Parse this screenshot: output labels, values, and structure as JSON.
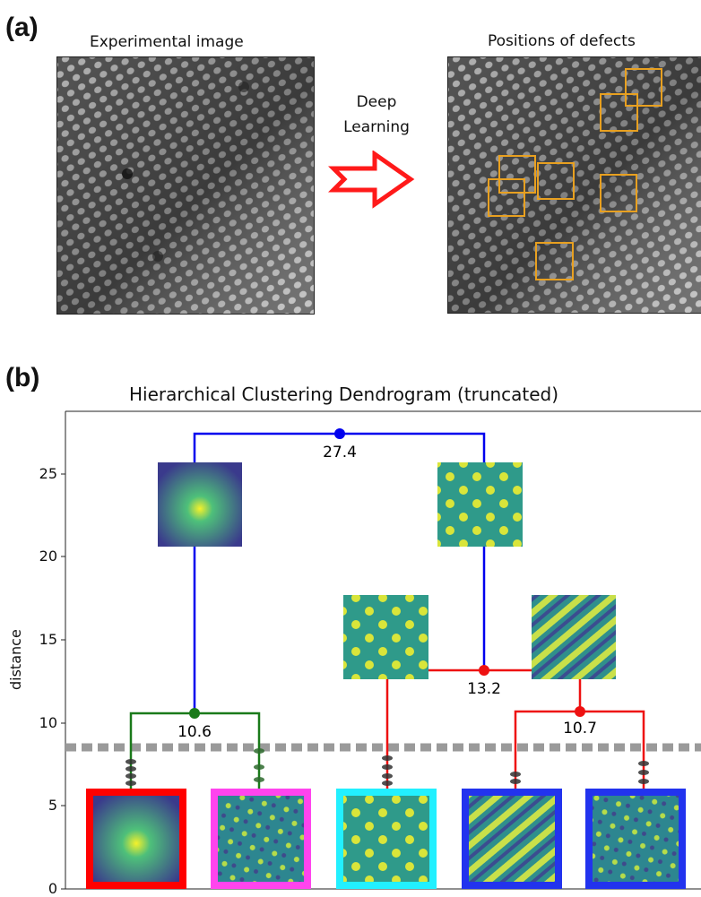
{
  "panel_a": {
    "label": "(a)",
    "left_caption": "Experimental image",
    "right_caption": "Positions of defects",
    "arrow_text_1": "Deep",
    "arrow_text_2": "Learning",
    "colors": {
      "arrow": "#ff1a1a",
      "defect_box": "#e8a020"
    }
  },
  "panel_b": {
    "label": "(b)",
    "title": "Hierarchical Clustering Dendrogram (truncated)",
    "ylabel": "distance",
    "yticks": [
      "0",
      "5",
      "10",
      "15",
      "20",
      "25"
    ],
    "merge_labels": [
      "27.4",
      "13.2",
      "10.6",
      "10.7"
    ],
    "colors": {
      "top_link": "#0000ee",
      "green_link": "#1a7a1a",
      "red_link": "#ee1111",
      "cutoff": "#9a9a9a",
      "leaf_frames": [
        "#ff0000",
        "#ff44ee",
        "#22f0ff",
        "#2233ee",
        "#2233ee"
      ]
    }
  },
  "chart_data": {
    "type": "dendrogram",
    "title": "Hierarchical Clustering Dendrogram (truncated)",
    "ylabel": "distance",
    "ylim": [
      0,
      28
    ],
    "yticks": [
      0,
      5,
      10,
      15,
      20,
      25
    ],
    "cutoff_distance": 8.5,
    "merges": [
      {
        "distance": 27.4,
        "color": "blue"
      },
      {
        "distance": 13.2,
        "color": "red"
      },
      {
        "distance": 10.6,
        "color": "green"
      },
      {
        "distance": 10.7,
        "color": "red"
      }
    ],
    "leaves": 5
  }
}
